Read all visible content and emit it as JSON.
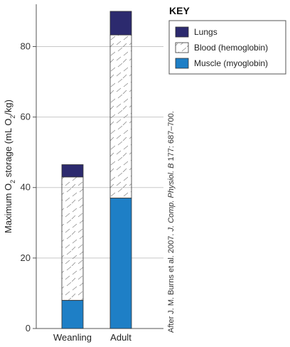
{
  "chart_data": {
    "type": "bar",
    "stacked": true,
    "categories": [
      "Weanling",
      "Adult"
    ],
    "series": [
      {
        "name": "Muscle (myoglobin)",
        "values": [
          8,
          37
        ],
        "color": "#1e7fc6",
        "pattern": "solid"
      },
      {
        "name": "Blood (hemoglobin)",
        "values": [
          35,
          46.3
        ],
        "color": "#ffffff",
        "pattern": "hatch"
      },
      {
        "name": "Lungs",
        "values": [
          3.5,
          6.7
        ],
        "color": "#2c2a6e",
        "pattern": "solid"
      }
    ],
    "ylabel_parts": [
      "Maximum O",
      "2",
      " storage (mL O",
      "2",
      "/kg)"
    ],
    "ylim": [
      0,
      92
    ],
    "yticks": [
      0,
      20,
      40,
      60,
      80
    ],
    "grid": true,
    "legend_title": "KEY",
    "legend_position": "top-right",
    "credit_parts": [
      "After J. M. Burns et al. 2007. ",
      "J. Comp. Physiol. B",
      " 177: 687–700."
    ]
  }
}
